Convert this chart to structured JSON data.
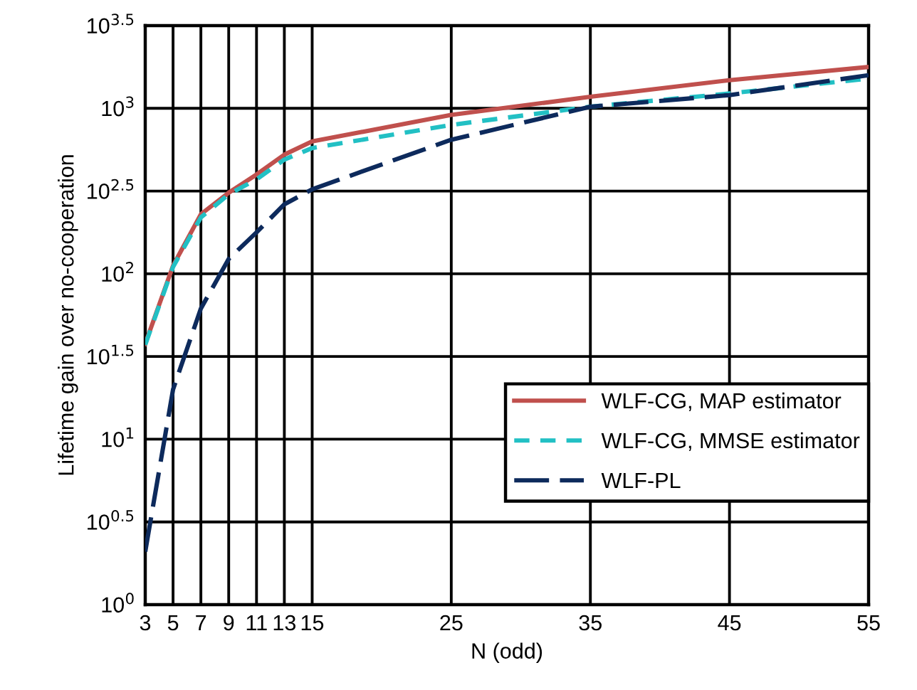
{
  "chart_data": {
    "type": "line",
    "xlabel": "N (odd)",
    "ylabel": "Lifetime gain over no-cooperation",
    "x": [
      3,
      5,
      7,
      9,
      11,
      13,
      15,
      25,
      35,
      45,
      55
    ],
    "series": [
      {
        "name": "WLF-CG, MAP estimator",
        "color": "#c0504d",
        "line_style": "solid",
        "values": [
          37.7,
          112,
          229,
          309,
          398,
          525,
          631,
          912,
          1175,
          1479,
          1778
        ]
      },
      {
        "name": "WLF-CG, MMSE estimator",
        "color": "#22c0c4",
        "line_style": "dashed",
        "values": [
          37.2,
          110,
          219,
          302,
          372,
          490,
          575,
          794,
          1023,
          1230,
          1514
        ]
      },
      {
        "name": "WLF-PL",
        "color": "#0d2a5c",
        "line_style": "dashed",
        "values": [
          2.09,
          20.0,
          61.7,
          123,
          178,
          263,
          324,
          646,
          1023,
          1202,
          1585
        ]
      }
    ],
    "log": "y",
    "xlim": [
      3,
      55
    ],
    "xticks": [
      3,
      5,
      7,
      9,
      11,
      13,
      15,
      25,
      35,
      45,
      55
    ],
    "ylim": [
      1,
      3162.3
    ],
    "yticks": [
      {
        "value": 1,
        "label": "10$^{0}$"
      },
      {
        "value": 3.1623,
        "label": "10$^{0.5}$"
      },
      {
        "value": 10,
        "label": "10$^{1}$"
      },
      {
        "value": 31.623,
        "label": "10$^{1.5}$"
      },
      {
        "value": 100,
        "label": "10$^{2}$"
      },
      {
        "value": 316.23,
        "label": "10$^{2.5}$"
      },
      {
        "value": 1000,
        "label": "10$^{3}$"
      },
      {
        "value": 3162.3,
        "label": "10$^{3.5}$"
      }
    ],
    "grid": true,
    "legend": "right",
    "marker": "none"
  }
}
